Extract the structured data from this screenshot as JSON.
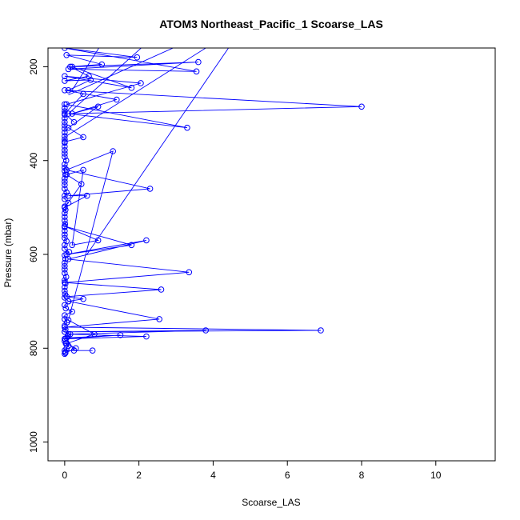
{
  "chart_data": {
    "type": "line",
    "title": "ATOM3 Northeast_Pacific_1 Scoarse_LAS",
    "xlabel": "Scoarse_LAS",
    "ylabel": "Pressure (mbar)",
    "xlim": [
      -0.45,
      11.6
    ],
    "ylim": [
      1040,
      160
    ],
    "y_reversed": true,
    "grid": false,
    "x_ticks": [
      0,
      2,
      4,
      6,
      8,
      10
    ],
    "y_ticks": [
      200,
      400,
      600,
      800,
      1000
    ],
    "series": [
      {
        "color": "#0000ff",
        "marker": "open-circle",
        "x": [
          0.0,
          0.02,
          0.05,
          0.1,
          0.03,
          0.0,
          0.01,
          0.08,
          0.15,
          0.0,
          0.02,
          0.0,
          0.06,
          0.0,
          0.0,
          0.2,
          0.03,
          0.0,
          0.1,
          0.0,
          0.01,
          0.0,
          0.0,
          0.02,
          0.0,
          0.04,
          0.0,
          0.0,
          0.0,
          0.0,
          0.02,
          0.0,
          0.12,
          0.0,
          0.0,
          0.05,
          0.0,
          0.0,
          0.0,
          0.0,
          0.01,
          0.0,
          0.0,
          0.0,
          0.02,
          0.0,
          0.1,
          0.0,
          0.0,
          0.05,
          0.0,
          0.0,
          0.0,
          0.0,
          0.02,
          0.0,
          0.0,
          0.0,
          0.04,
          0.0,
          0.0,
          0.0,
          0.0,
          0.0,
          0.0,
          0.0,
          0.0,
          0.0,
          0.0,
          0.0,
          0.0,
          0.0,
          0.0,
          0.0,
          0.0
        ],
        "y": [
          812,
          808,
          800,
          795,
          790,
          785,
          780,
          775,
          770,
          765,
          760,
          752,
          745,
          738,
          730,
          722,
          715,
          708,
          700,
          692,
          685,
          678,
          670,
          662,
          655,
          648,
          640,
          632,
          625,
          618,
          610,
          602,
          595,
          588,
          580,
          572,
          565,
          558,
          550,
          542,
          535,
          528,
          520,
          512,
          505,
          498,
          490,
          482,
          475,
          468,
          460,
          452,
          445,
          438,
          430,
          422,
          415,
          408,
          400,
          392,
          385,
          378,
          370,
          362,
          355,
          348,
          340,
          332,
          325,
          318,
          310,
          302,
          295,
          288,
          280
        ]
      },
      {
        "color": "#0000ff",
        "marker": "open-circle",
        "x": [
          0.02,
          0.3,
          0.05,
          0.8,
          0.1,
          1.3,
          0.05,
          2.3,
          0.1,
          0.6,
          0.0,
          0.45,
          0.05,
          0.5,
          0.2,
          0.9,
          0.0,
          1.8,
          0.05,
          2.2,
          0.1,
          3.35,
          0.0,
          2.6,
          0.05,
          0.5,
          0.1,
          2.55,
          0.0,
          6.9,
          0.0,
          3.8,
          0.1,
          2.2,
          0.0,
          1.5,
          0.05,
          0.25,
          0.0,
          0.75
        ],
        "y": [
          810,
          800,
          790,
          770,
          740,
          380,
          420,
          460,
          475,
          475,
          500,
          450,
          430,
          420,
          580,
          570,
          540,
          580,
          600,
          570,
          610,
          638,
          660,
          675,
          690,
          695,
          700,
          738,
          755,
          762,
          765,
          762,
          770,
          775,
          780,
          772,
          778,
          805,
          805,
          805
        ]
      },
      {
        "color": "#0000ff",
        "marker": "open-circle",
        "x": [
          0.0,
          0.5,
          0.1,
          0.9,
          0.2,
          1.4,
          0.0,
          8.0,
          0.1,
          3.3,
          0.05,
          2.05,
          0.0,
          1.8,
          0.2,
          3.6,
          0.1,
          3.55,
          0.0,
          1.95,
          0.05,
          1.0,
          0.15,
          0.65,
          0.0,
          0.7,
          0.1,
          0.5,
          0.0,
          0.25
        ],
        "y": [
          360,
          350,
          330,
          285,
          300,
          270,
          250,
          285,
          300,
          330,
          280,
          235,
          220,
          245,
          200,
          190,
          205,
          210,
          160,
          180,
          175,
          195,
          200,
          220,
          230,
          228,
          250,
          258,
          300,
          318
        ]
      }
    ],
    "lines_off_top": [
      {
        "x1": 0.1,
        "y1": 300,
        "x2": 2.2,
        "y2": 150
      },
      {
        "x1": 0.0,
        "y1": 350,
        "x2": 4.0,
        "y2": 150
      },
      {
        "x1": 0.6,
        "y1": 600,
        "x2": 4.5,
        "y2": 150
      },
      {
        "x1": 0.2,
        "y1": 250,
        "x2": 1.0,
        "y2": 150
      },
      {
        "x1": 0.1,
        "y1": 260,
        "x2": 3.2,
        "y2": 150
      }
    ]
  }
}
